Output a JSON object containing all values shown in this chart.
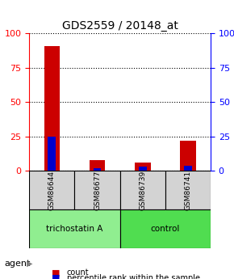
{
  "title": "GDS2559 / 20148_at",
  "samples": [
    "GSM86644",
    "GSM86677",
    "GSM86739",
    "GSM86741"
  ],
  "red_values": [
    91,
    8,
    6,
    22
  ],
  "blue_values": [
    25,
    2,
    3,
    4
  ],
  "ylim": [
    0,
    100
  ],
  "yticks": [
    0,
    25,
    50,
    75,
    100
  ],
  "groups": [
    {
      "label": "trichostatin A",
      "cols": [
        0,
        1
      ],
      "color": "#90ee90"
    },
    {
      "label": "control",
      "cols": [
        2,
        3
      ],
      "color": "#50dd50"
    }
  ],
  "bar_width": 0.35,
  "red_color": "#cc0000",
  "blue_color": "#0000cc",
  "left_axis_color": "red",
  "right_axis_color": "blue",
  "background_color": "#ffffff",
  "grid_color": "#000000",
  "agent_label": "agent",
  "legend_count": "count",
  "legend_pct": "percentile rank within the sample"
}
